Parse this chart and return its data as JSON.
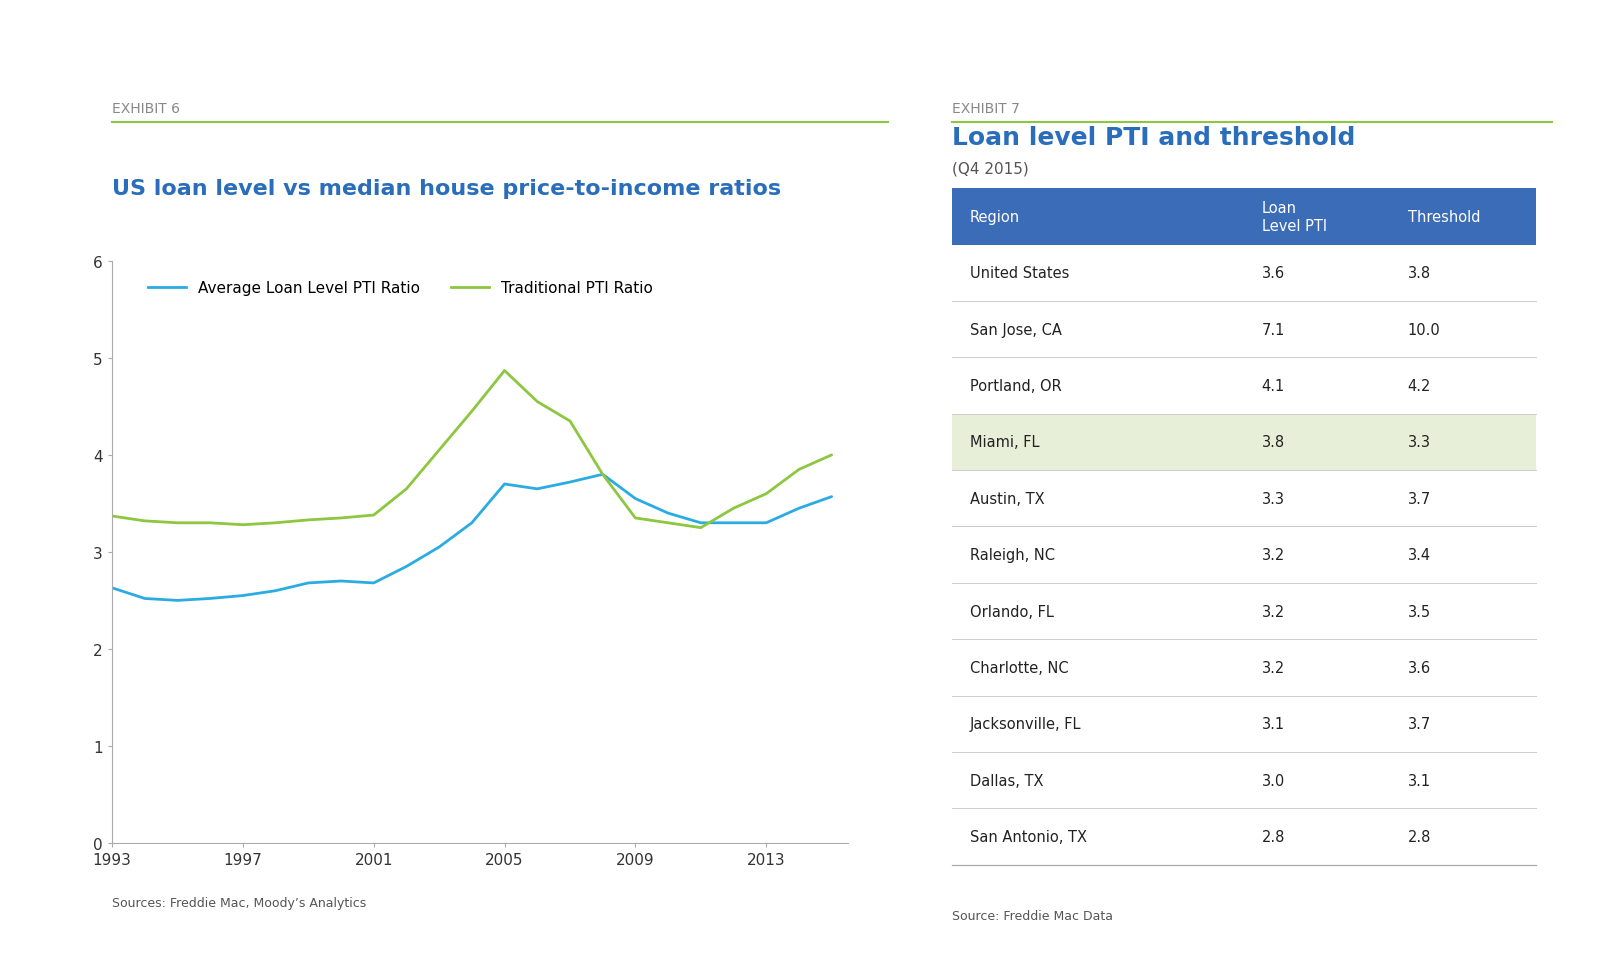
{
  "exhibit6_title": "EXHIBIT 6",
  "chart_title": "US loan level vs median house price-to-income ratios",
  "loan_years": [
    1993,
    1994,
    1995,
    1996,
    1997,
    1998,
    1999,
    2000,
    2001,
    2002,
    2003,
    2004,
    2005,
    2006,
    2007,
    2008,
    2009,
    2010,
    2011,
    2012,
    2013,
    2014,
    2015
  ],
  "loan_pti": [
    2.63,
    2.52,
    2.5,
    2.52,
    2.55,
    2.6,
    2.68,
    2.7,
    2.68,
    2.85,
    3.05,
    3.3,
    3.7,
    3.65,
    3.72,
    3.8,
    3.55,
    3.4,
    3.3,
    3.3,
    3.3,
    3.45,
    3.57
  ],
  "trad_pti": [
    3.37,
    3.32,
    3.3,
    3.3,
    3.28,
    3.3,
    3.33,
    3.35,
    3.38,
    3.65,
    4.05,
    4.45,
    4.87,
    4.55,
    4.35,
    3.8,
    3.35,
    3.3,
    3.25,
    3.45,
    3.6,
    3.85,
    4.0
  ],
  "loan_color": "#2AACE2",
  "trad_color": "#8DC63F",
  "ylim": [
    0,
    6
  ],
  "yticks": [
    0,
    1,
    2,
    3,
    4,
    5,
    6
  ],
  "xticks": [
    1993,
    1997,
    2001,
    2005,
    2009,
    2013
  ],
  "source_left": "Sources: Freddie Mac, Moody’s Analytics",
  "exhibit7_title": "EXHIBIT 7",
  "table_title": "Loan level PTI and threshold",
  "table_subtitle": "(Q4 2015)",
  "header_color": "#3B6CB7",
  "header_text_color": "#FFFFFF",
  "highlight_color": "#E8EFD8",
  "table_headers": [
    "Region",
    "Loan\nLevel PTI",
    "Threshold"
  ],
  "table_data": [
    [
      "United States",
      "3.6",
      "3.8"
    ],
    [
      "San Jose, CA",
      "7.1",
      "10.0"
    ],
    [
      "Portland, OR",
      "4.1",
      "4.2"
    ],
    [
      "Miami, FL",
      "3.8",
      "3.3"
    ],
    [
      "Austin, TX",
      "3.3",
      "3.7"
    ],
    [
      "Raleigh, NC",
      "3.2",
      "3.4"
    ],
    [
      "Orlando, FL",
      "3.2",
      "3.5"
    ],
    [
      "Charlotte, NC",
      "3.2",
      "3.6"
    ],
    [
      "Jacksonville, FL",
      "3.1",
      "3.7"
    ],
    [
      "Dallas, TX",
      "3.0",
      "3.1"
    ],
    [
      "San Antonio, TX",
      "2.8",
      "2.8"
    ]
  ],
  "highlight_row": 3,
  "source_right": "Source: Freddie Mac Data",
  "divider_color": "#8DC63F",
  "exhibit_label_color": "#888888",
  "bg_color": "#FFFFFF"
}
